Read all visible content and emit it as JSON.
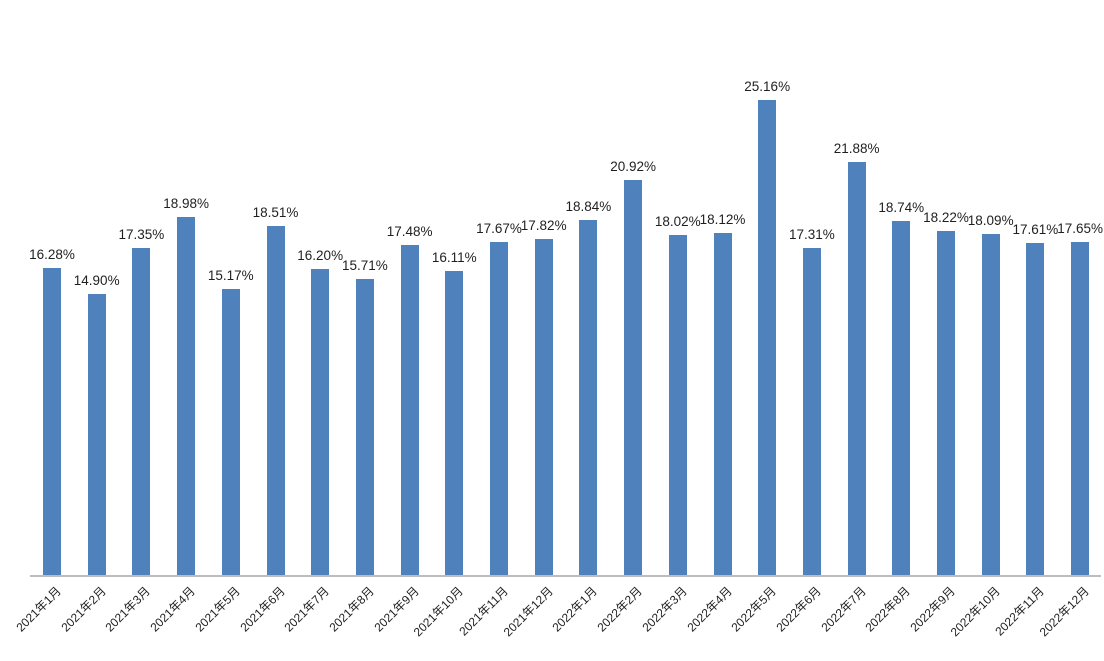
{
  "chart_data": {
    "type": "bar",
    "title": "",
    "xlabel": "",
    "ylabel": "",
    "categories": [
      "2021年1月",
      "2021年2月",
      "2021年3月",
      "2021年4月",
      "2021年5月",
      "2021年6月",
      "2021年7月",
      "2021年8月",
      "2021年9月",
      "2021年10月",
      "2021年11月",
      "2021年12月",
      "2022年1月",
      "2022年2月",
      "2022年3月",
      "2022年4月",
      "2022年5月",
      "2022年6月",
      "2022年7月",
      "2022年8月",
      "2022年9月",
      "2022年10月",
      "2022年11月",
      "2022年12月"
    ],
    "values": [
      16.28,
      14.9,
      17.35,
      18.98,
      15.17,
      18.51,
      16.2,
      15.71,
      17.48,
      16.11,
      17.67,
      17.82,
      18.84,
      20.92,
      18.02,
      18.12,
      25.16,
      17.31,
      21.88,
      18.74,
      18.22,
      18.09,
      17.61,
      17.65
    ],
    "data_labels": [
      "16.28%",
      "14.90%",
      "17.35%",
      "18.98%",
      "15.17%",
      "18.51%",
      "16.20%",
      "15.71%",
      "17.48%",
      "16.11%",
      "17.67%",
      "17.82%",
      "18.84%",
      "20.92%",
      "18.02%",
      "18.12%",
      "25.16%",
      "17.31%",
      "21.88%",
      "18.74%",
      "18.22%",
      "18.09%",
      "17.61%",
      "17.65%"
    ],
    "ylim": [
      0,
      26
    ],
    "grid": false,
    "legend": "none",
    "y_axis_visible": false,
    "bar_color": "#4F81BD",
    "axis_line_color": "#BDBDBD",
    "data_label_color": "#1f1f1f",
    "tick_label_color": "#1f1f1f"
  }
}
